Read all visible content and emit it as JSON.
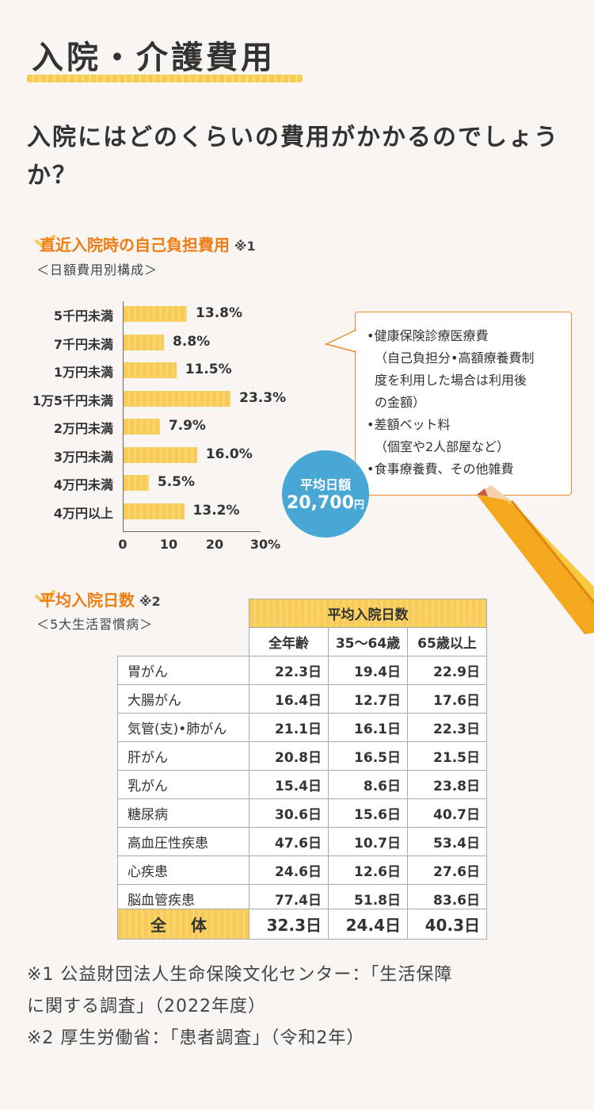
{
  "page": {
    "title": "入院・介護費用",
    "question": "入院にはどのくらいの費用がかかるのでしょうか？"
  },
  "section1": {
    "heading": "直近入院時の自己負担費用",
    "note": "※1",
    "subheading": "＜日額費用別構成＞"
  },
  "chart_data": {
    "type": "bar",
    "orientation": "horizontal",
    "categories": [
      "5千円未満",
      "7千円未満",
      "1万円未満",
      "1万5千円未満",
      "2万円未満",
      "3万円未満",
      "4万円未満",
      "4万円以上"
    ],
    "values": [
      13.8,
      8.8,
      11.5,
      23.3,
      7.9,
      16.0,
      5.5,
      13.2
    ],
    "value_labels": [
      "13.8%",
      "8.8%",
      "11.5%",
      "23.3%",
      "7.9%",
      "16.0%",
      "5.5%",
      "13.2%"
    ],
    "xlim": [
      0,
      30
    ],
    "x_ticks": [
      "0",
      "10",
      "20",
      "30%"
    ],
    "bar_color": "#f7cb55"
  },
  "callout": {
    "lines": [
      "•健康保険診療医療費",
      "（自己負担分•高額療養費制",
      "度を利用した場合は利用後",
      "の金額）",
      "•差額ベット料",
      "（個室や2人部屋など）",
      "•食事療養費、その他雑費"
    ]
  },
  "average": {
    "label": "平均日額",
    "value": "20,700",
    "unit": "円",
    "color": "#48a7d5"
  },
  "section2": {
    "heading": "平均入院日数",
    "note": "※2",
    "subheading": "＜5大生活習慣病＞"
  },
  "table": {
    "group_header": "平均入院日数",
    "columns": [
      "全年齢",
      "35～64歳",
      "65歳以上"
    ],
    "rows": [
      {
        "name": "胃がん",
        "values": [
          "22.3日",
          "19.4日",
          "22.9日"
        ]
      },
      {
        "name": "大腸がん",
        "values": [
          "16.4日",
          "12.7日",
          "17.6日"
        ]
      },
      {
        "name": "気管(支)•肺がん",
        "values": [
          "21.1日",
          "16.1日",
          "22.3日"
        ]
      },
      {
        "name": "肝がん",
        "values": [
          "20.8日",
          "16.5日",
          "21.5日"
        ]
      },
      {
        "name": "乳がん",
        "values": [
          "15.4日",
          "8.6日",
          "23.8日"
        ]
      },
      {
        "name": "糖尿病",
        "values": [
          "30.6日",
          "15.6日",
          "40.7日"
        ]
      },
      {
        "name": "高血圧性疾患",
        "values": [
          "47.6日",
          "10.7日",
          "53.4日"
        ]
      },
      {
        "name": "心疾患",
        "values": [
          "24.6日",
          "12.6日",
          "27.6日"
        ]
      },
      {
        "name": "脳血管疾患",
        "values": [
          "77.4日",
          "51.8日",
          "83.6日"
        ]
      }
    ],
    "total": {
      "name": "全 体",
      "values": [
        "32.3日",
        "24.4日",
        "40.3日"
      ]
    }
  },
  "footnotes": [
    "※1 公益財団法人生命保険文化センター：「生活保障",
    "に関する調査」（2022年度）",
    "※2 厚生労働省：「患者調査」（令和2年）"
  ],
  "colors": {
    "accent": "#ef7d14",
    "highlight": "#f7cb55",
    "background": "#f8f5f2"
  }
}
